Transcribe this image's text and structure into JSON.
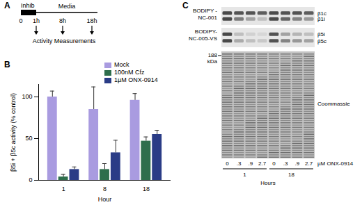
{
  "panel_labels": [
    "A",
    "B",
    "C"
  ],
  "timeline": {
    "inhib_label": "Inhib",
    "media_label": "Media",
    "time_labels": [
      "0",
      "1h",
      "8h",
      "18h"
    ],
    "measurement_label": "Activity Measurements"
  },
  "chart_data": {
    "type": "bar",
    "categories": [
      1,
      8,
      18
    ],
    "x_label": "Hour",
    "y_label": "β5i + β5c activity (% control)",
    "ylim": [
      0,
      115
    ],
    "yticks": [
      0,
      50,
      100
    ],
    "legend": "top-right",
    "series": [
      {
        "name": "Mock",
        "color": "#a99be0",
        "values": [
          100,
          85,
          96
        ],
        "errors": [
          7,
          27,
          8
        ]
      },
      {
        "name": "100nM Cfz",
        "color": "#2e6e4c",
        "values": [
          4,
          13,
          47
        ],
        "errors": [
          3,
          7,
          5
        ]
      },
      {
        "name": "1µM ONX-0914",
        "color": "#2a3c86",
        "values": [
          13,
          33,
          55
        ],
        "errors": [
          3,
          15,
          5
        ]
      }
    ]
  },
  "blot": {
    "rows": [
      {
        "label": [
          "BODIPY -",
          "NC-001"
        ],
        "bands": [
          {
            "name": "β1c",
            "intensity": [
              0.8,
              0.75,
              0.75,
              0.7,
              0.8,
              0.75,
              0.75,
              0.7
            ]
          },
          {
            "name": "β1i",
            "intensity": [
              0.8,
              0.55,
              0.35,
              0.2,
              0.8,
              0.65,
              0.5,
              0.4
            ]
          }
        ]
      },
      {
        "label": [
          "BODIPY-",
          "NC-005-VS"
        ],
        "bands": [
          {
            "name": "β5i",
            "intensity": [
              0.8,
              0.2,
              0.1,
              0.08,
              0.75,
              0.35,
              0.25,
              0.2
            ]
          },
          {
            "name": "β5c",
            "intensity": [
              0.8,
              0.3,
              0.2,
              0.15,
              0.75,
              0.5,
              0.4,
              0.35
            ]
          }
        ]
      }
    ],
    "stain_label": "Coommassie",
    "marker_label": [
      "188",
      "kDa"
    ],
    "lane_labels": [
      "0",
      ".3",
      ".9",
      "2.7",
      "0",
      ".3",
      ".9",
      "2.7"
    ],
    "dose_label": "µM ONX-0914",
    "time_groups": [
      {
        "label": "1",
        "lanes": 4
      },
      {
        "label": "18",
        "lanes": 4
      }
    ],
    "time_label": "Hours"
  }
}
